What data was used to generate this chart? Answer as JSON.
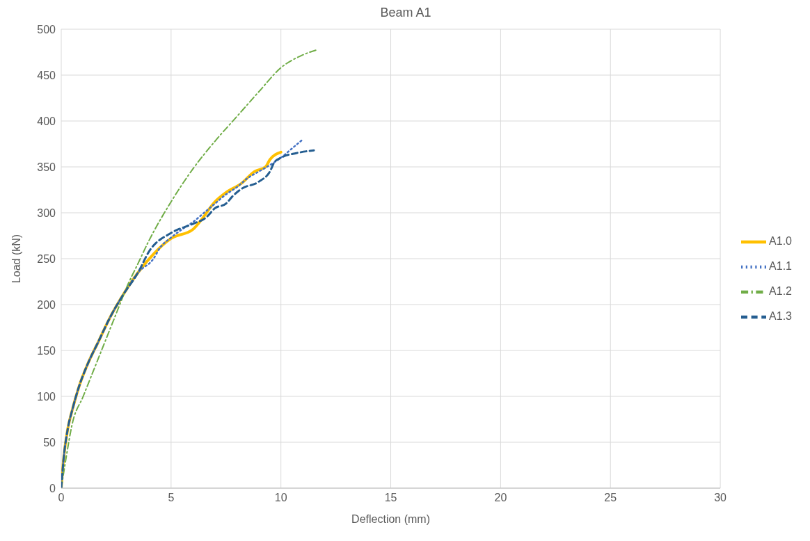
{
  "chart_data": {
    "type": "line",
    "title": "Beam A1",
    "xlabel": "Deflection (mm)",
    "ylabel": "Load (kN)",
    "xlim": [
      0,
      30
    ],
    "xticks": [
      0,
      5,
      10,
      15,
      20,
      25,
      30
    ],
    "ylim": [
      0,
      500
    ],
    "yticks": [
      0,
      50,
      100,
      150,
      200,
      250,
      300,
      350,
      400,
      450,
      500
    ],
    "grid": true,
    "legend": "right",
    "marker": "none",
    "series": [
      {
        "name": "A1.0",
        "color": "#ffc000",
        "line_style": "solid",
        "x": [
          0,
          0.1,
          0.3,
          0.5,
          0.8,
          1.2,
          1.7,
          2.2,
          2.8,
          3.5,
          4.2,
          5,
          6,
          6.3,
          7,
          7.5,
          8.2,
          8.8,
          9.3,
          9.5,
          10
        ],
        "values": [
          0,
          30,
          65,
          85,
          110,
          135,
          160,
          185,
          210,
          235,
          255,
          272,
          282,
          290,
          312,
          322,
          332,
          345,
          350,
          358,
          366
        ]
      },
      {
        "name": "A1.1",
        "color": "#4472c4",
        "line_style": "dotted",
        "x": [
          0,
          0.1,
          0.3,
          0.5,
          0.8,
          1.2,
          1.7,
          2.2,
          2.8,
          3.5,
          4.2,
          4.5,
          5,
          5.5,
          6,
          6.5,
          7,
          7.5,
          8,
          8.5,
          9,
          9.5,
          10,
          10.5,
          11
        ],
        "values": [
          0,
          30,
          65,
          85,
          110,
          135,
          160,
          185,
          210,
          235,
          250,
          262,
          273,
          282,
          290,
          300,
          310,
          320,
          328,
          338,
          345,
          352,
          360,
          370,
          380
        ]
      },
      {
        "name": "A1.2",
        "color": "#70ad47",
        "line_style": "dashdot",
        "x": [
          0,
          0.2,
          0.5,
          1,
          1.5,
          2,
          2.5,
          3,
          3.5,
          4,
          5,
          6,
          7,
          8,
          9,
          10,
          11,
          11.7
        ],
        "values": [
          0,
          30,
          70,
          100,
          130,
          160,
          190,
          220,
          245,
          270,
          312,
          348,
          378,
          405,
          432,
          458,
          472,
          478
        ]
      },
      {
        "name": "A1.3",
        "color": "#255e91",
        "line_style": "dashed",
        "x": [
          0,
          0.1,
          0.3,
          0.5,
          0.8,
          1.2,
          1.7,
          2.2,
          2.8,
          3.5,
          4,
          5,
          6,
          6.6,
          7,
          7.5,
          7.8,
          8.2,
          9,
          9.5,
          9.7,
          10,
          10.7,
          11.5
        ],
        "values": [
          0,
          30,
          65,
          85,
          110,
          135,
          160,
          185,
          210,
          235,
          258,
          278,
          288,
          295,
          305,
          310,
          318,
          326,
          334,
          345,
          355,
          360,
          365,
          368
        ]
      }
    ]
  }
}
